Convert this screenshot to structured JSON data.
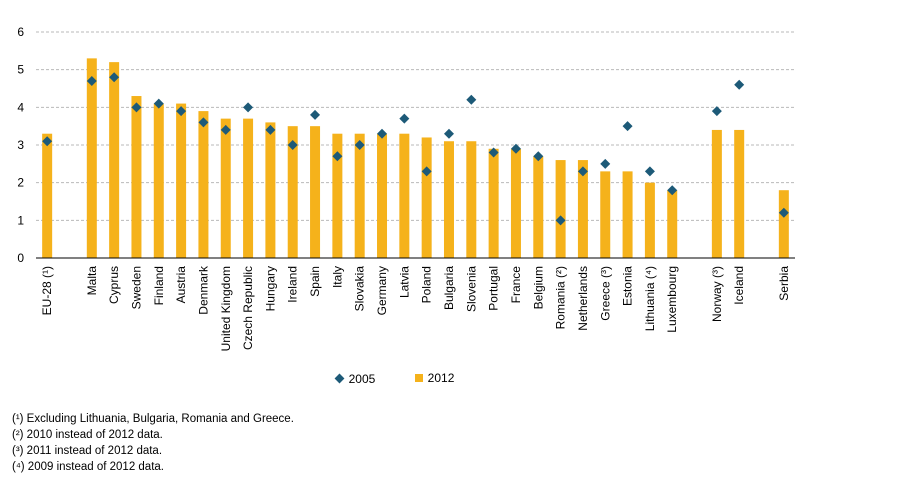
{
  "chart_data": {
    "type": "bar",
    "categories": [
      "EU-28 (¹)",
      "",
      "Malta",
      "Cyprus",
      "Sweden",
      "Finland",
      "Austria",
      "Denmark",
      "United Kingdom",
      "Czech Republic",
      "Hungary",
      "Ireland",
      "Spain",
      "Italy",
      "Slovakia",
      "Germany",
      "Latvia",
      "Poland",
      "Bulgaria",
      "Slovenia",
      "Portugal",
      "France",
      "Belgium",
      "Romania (²)",
      "Netherlands",
      "Greece (³)",
      "Estonia",
      "Lithuania (⁴)",
      "Luxembourg",
      "",
      "Norway (³)",
      "Iceland",
      "",
      "Serbia"
    ],
    "series": [
      {
        "name": "2012",
        "marker": "bar",
        "color": "#f5b21b",
        "values": [
          3.3,
          null,
          5.3,
          5.2,
          4.3,
          4.1,
          4.1,
          3.9,
          3.7,
          3.7,
          3.6,
          3.5,
          3.5,
          3.3,
          3.3,
          3.3,
          3.3,
          3.2,
          3.1,
          3.1,
          2.9,
          2.9,
          2.7,
          2.6,
          2.6,
          2.3,
          2.3,
          2.0,
          1.8,
          null,
          3.4,
          3.4,
          null,
          1.8
        ]
      },
      {
        "name": "2005",
        "marker": "diamond",
        "color": "#1d5a78",
        "values": [
          3.1,
          null,
          4.7,
          4.8,
          4.0,
          4.1,
          3.9,
          3.6,
          3.4,
          4.0,
          3.4,
          3.0,
          3.8,
          2.7,
          3.0,
          3.3,
          3.7,
          2.3,
          3.3,
          4.2,
          2.8,
          2.9,
          2.7,
          1.0,
          2.3,
          2.5,
          3.5,
          2.3,
          1.8,
          null,
          3.9,
          4.6,
          null,
          1.2
        ]
      }
    ],
    "yticks": [
      0,
      1,
      2,
      3,
      4,
      5,
      6
    ],
    "ylim": [
      0,
      6
    ],
    "grid": "horizontal dashed",
    "legend_position": "bottom"
  },
  "legend": {
    "items": [
      {
        "label": "2005",
        "marker": "diamond"
      },
      {
        "label": "2012",
        "marker": "square"
      }
    ]
  },
  "notes": [
    "(¹) Excluding Lithuania, Bulgaria, Romania and Greece.",
    "(²) 2010 instead of 2012 data.",
    "(³) 2011 instead of 2012 data.",
    "(⁴) 2009 instead of 2012 data."
  ]
}
